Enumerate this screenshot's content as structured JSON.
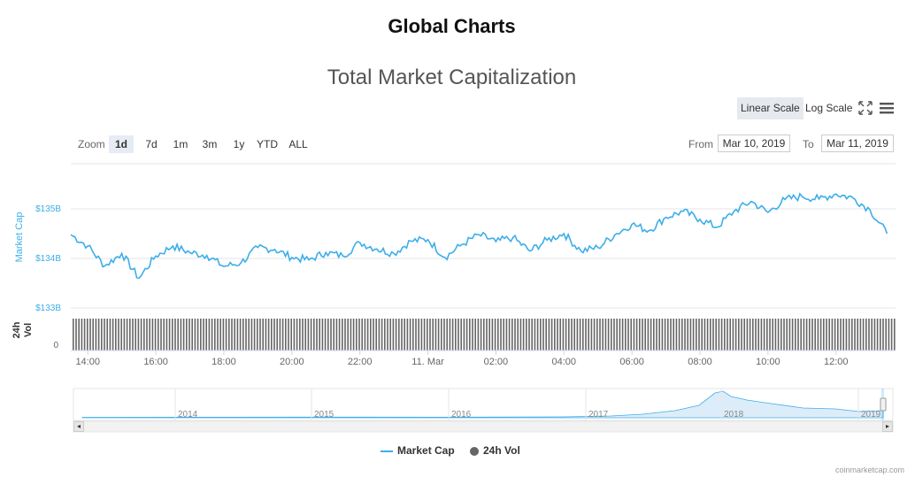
{
  "page": {
    "heading": "Global Charts",
    "credit": "coinmarketcap.com"
  },
  "controls": {
    "linear_scale": "Linear Scale",
    "log_scale": "Log Scale",
    "fullscreen_icon": "fullscreen-icon",
    "menu_icon": "hamburger-menu-icon",
    "zoom_label": "Zoom",
    "zoom_options": [
      "1d",
      "7d",
      "1m",
      "3m",
      "1y",
      "YTD",
      "ALL"
    ],
    "zoom_selected": "1d",
    "from_label": "From",
    "from_value": "Mar 10, 2019",
    "to_label": "To",
    "to_value": "Mar 11, 2019"
  },
  "colors": {
    "market_cap": "#3daee9",
    "volume": "#666666",
    "grid": "#e6e6e6",
    "navigator_fill": "#dcedf9"
  },
  "chart_data": {
    "type": "line",
    "title": "Total Market Capitalization",
    "x_tick_labels": [
      "14:00",
      "16:00",
      "18:00",
      "20:00",
      "22:00",
      "11. Mar",
      "02:00",
      "04:00",
      "06:00",
      "08:00",
      "10:00",
      "12:00"
    ],
    "x_range": [
      "Mar 10, 2019 13:30",
      "Mar 11, 2019 13:45"
    ],
    "series": [
      {
        "name": "Market Cap",
        "axis_label": "Market Cap",
        "y_tick_labels": [
          "$133B",
          "$134B",
          "$135B"
        ],
        "ylim": [
          133,
          135.9
        ],
        "x_hours": [
          0,
          0.5,
          1,
          1.5,
          2,
          2.5,
          3,
          3.5,
          4,
          4.5,
          5,
          5.5,
          6,
          6.5,
          7,
          7.5,
          8,
          8.5,
          9,
          9.5,
          10,
          10.5,
          11,
          11.5,
          12,
          12.5,
          13,
          13.5,
          14,
          14.5,
          15,
          15.5,
          16,
          16.5,
          17,
          17.5,
          18,
          18.5,
          19,
          19.5,
          20,
          20.5,
          21,
          21.5,
          22,
          22.5,
          23,
          23.5,
          24
        ],
        "values": [
          134.48,
          134.25,
          133.85,
          134.1,
          133.6,
          134.05,
          134.25,
          134.12,
          134.06,
          133.84,
          133.91,
          134.22,
          134.18,
          134.02,
          133.97,
          134.12,
          134.05,
          134.32,
          134.19,
          134.1,
          134.35,
          134.38,
          134.02,
          134.28,
          134.48,
          134.34,
          134.42,
          134.15,
          134.37,
          134.5,
          134.15,
          134.22,
          134.48,
          134.69,
          134.56,
          134.83,
          134.95,
          134.79,
          134.63,
          134.95,
          135.15,
          134.93,
          135.19,
          135.25,
          135.2,
          135.3,
          135.22,
          134.98,
          134.5
        ]
      },
      {
        "name": "24h Vol",
        "axis_label": "24h Vol",
        "y_tick_labels": [
          "0"
        ],
        "note": "uniform dense volume bars"
      }
    ],
    "navigator": {
      "year_labels": [
        "2014",
        "2015",
        "2016",
        "2017",
        "2018",
        "2019"
      ]
    },
    "legend": {
      "placement": "bottom-center",
      "items": [
        "Market Cap",
        "24h Vol"
      ]
    },
    "grid": true
  }
}
